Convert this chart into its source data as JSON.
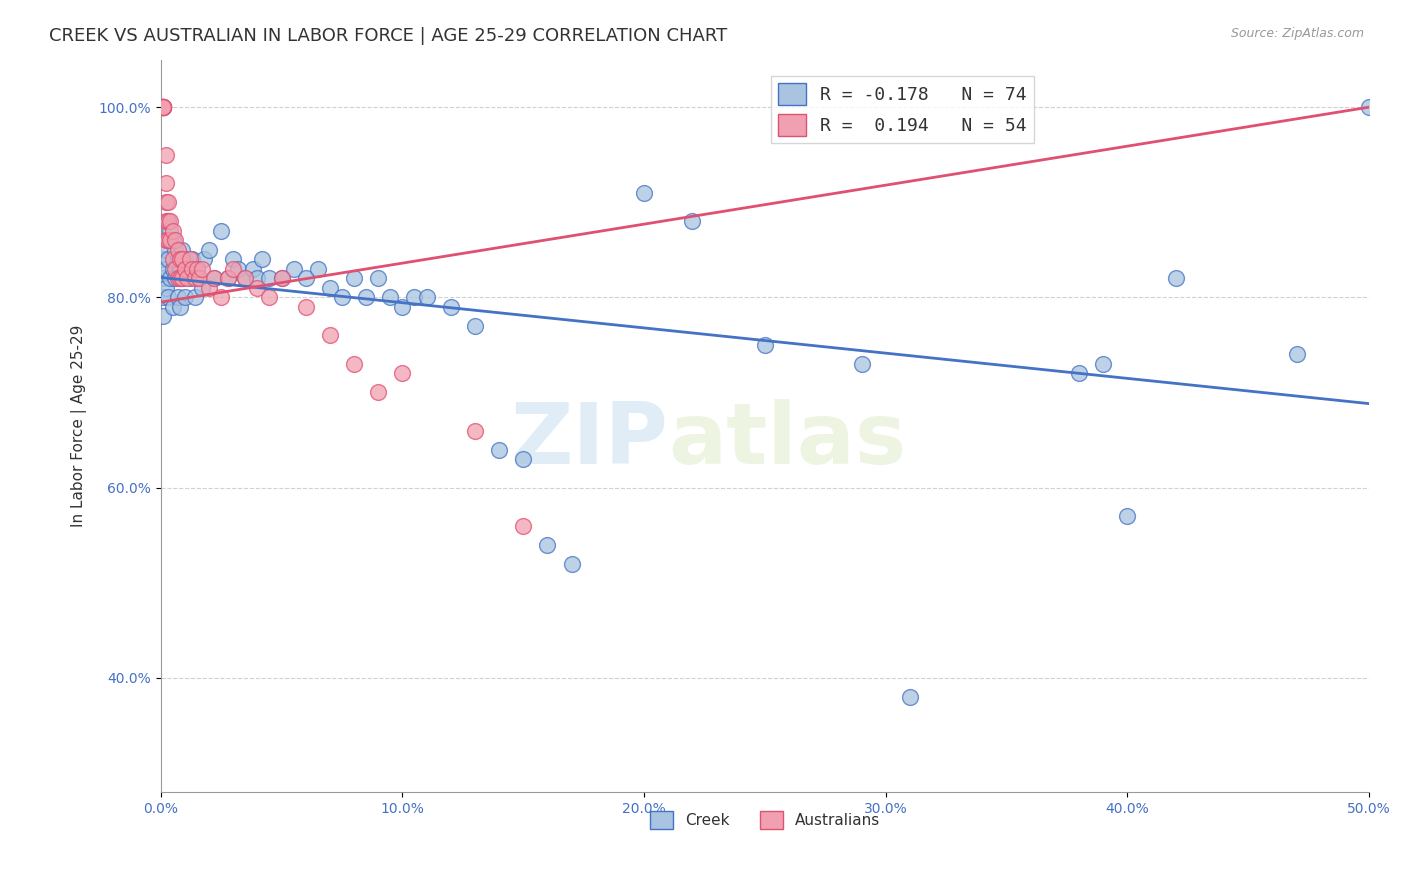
{
  "title": "CREEK VS AUSTRALIAN IN LABOR FORCE | AGE 25-29 CORRELATION CHART",
  "source": "Source: ZipAtlas.com",
  "ylabel": "In Labor Force | Age 25-29",
  "xlim": [
    0.0,
    0.5
  ],
  "ylim": [
    0.28,
    1.05
  ],
  "xticks": [
    0.0,
    0.1,
    0.2,
    0.3,
    0.4,
    0.5
  ],
  "xtick_labels": [
    "0.0%",
    "10.0%",
    "20.0%",
    "30.0%",
    "40.0%",
    "50.0%"
  ],
  "yticks": [
    0.4,
    0.6,
    0.8,
    1.0
  ],
  "ytick_labels": [
    "40.0%",
    "60.0%",
    "80.0%",
    "100.0%"
  ],
  "creek_R": -0.178,
  "creek_N": 74,
  "aus_R": 0.194,
  "aus_N": 54,
  "creek_color": "#a8c4e0",
  "aus_color": "#f0a0b0",
  "creek_line_color": "#4472c4",
  "aus_line_color": "#e05070",
  "watermark_zip": "ZIP",
  "watermark_atlas": "atlas",
  "creek_x": [
    0.001,
    0.001,
    0.001,
    0.001,
    0.002,
    0.002,
    0.002,
    0.003,
    0.003,
    0.003,
    0.004,
    0.004,
    0.005,
    0.005,
    0.005,
    0.006,
    0.006,
    0.007,
    0.007,
    0.008,
    0.008,
    0.009,
    0.009,
    0.01,
    0.01,
    0.011,
    0.012,
    0.013,
    0.014,
    0.015,
    0.016,
    0.017,
    0.018,
    0.02,
    0.022,
    0.025,
    0.028,
    0.03,
    0.032,
    0.035,
    0.038,
    0.04,
    0.042,
    0.045,
    0.05,
    0.055,
    0.06,
    0.065,
    0.07,
    0.075,
    0.08,
    0.085,
    0.09,
    0.095,
    0.1,
    0.105,
    0.11,
    0.12,
    0.13,
    0.14,
    0.15,
    0.16,
    0.17,
    0.2,
    0.22,
    0.25,
    0.29,
    0.31,
    0.38,
    0.39,
    0.4,
    0.42,
    0.47,
    0.5
  ],
  "creek_y": [
    0.84,
    0.82,
    0.8,
    0.78,
    0.85,
    0.83,
    0.81,
    0.88,
    0.84,
    0.8,
    0.87,
    0.82,
    0.86,
    0.83,
    0.79,
    0.85,
    0.82,
    0.84,
    0.8,
    0.83,
    0.79,
    0.85,
    0.82,
    0.84,
    0.8,
    0.83,
    0.82,
    0.84,
    0.8,
    0.83,
    0.82,
    0.81,
    0.84,
    0.85,
    0.82,
    0.87,
    0.82,
    0.84,
    0.83,
    0.82,
    0.83,
    0.82,
    0.84,
    0.82,
    0.82,
    0.83,
    0.82,
    0.83,
    0.81,
    0.8,
    0.82,
    0.8,
    0.82,
    0.8,
    0.79,
    0.8,
    0.8,
    0.79,
    0.77,
    0.64,
    0.63,
    0.54,
    0.52,
    0.91,
    0.88,
    0.75,
    0.73,
    0.38,
    0.72,
    0.73,
    0.57,
    0.82,
    0.74,
    1.0
  ],
  "aus_x": [
    0.001,
    0.001,
    0.001,
    0.001,
    0.001,
    0.001,
    0.001,
    0.001,
    0.001,
    0.001,
    0.002,
    0.002,
    0.002,
    0.002,
    0.002,
    0.003,
    0.003,
    0.003,
    0.004,
    0.004,
    0.005,
    0.005,
    0.006,
    0.006,
    0.007,
    0.007,
    0.008,
    0.008,
    0.009,
    0.009,
    0.01,
    0.011,
    0.012,
    0.013,
    0.014,
    0.015,
    0.016,
    0.017,
    0.02,
    0.022,
    0.025,
    0.028,
    0.03,
    0.035,
    0.04,
    0.045,
    0.05,
    0.06,
    0.07,
    0.08,
    0.09,
    0.1,
    0.13,
    0.15
  ],
  "aus_y": [
    1.0,
    1.0,
    1.0,
    1.0,
    1.0,
    1.0,
    1.0,
    1.0,
    1.0,
    1.0,
    0.95,
    0.92,
    0.9,
    0.88,
    0.86,
    0.9,
    0.88,
    0.86,
    0.88,
    0.86,
    0.87,
    0.84,
    0.86,
    0.83,
    0.85,
    0.82,
    0.84,
    0.82,
    0.84,
    0.82,
    0.83,
    0.82,
    0.84,
    0.83,
    0.82,
    0.83,
    0.82,
    0.83,
    0.81,
    0.82,
    0.8,
    0.82,
    0.83,
    0.82,
    0.81,
    0.8,
    0.82,
    0.79,
    0.76,
    0.73,
    0.7,
    0.72,
    0.66,
    0.56
  ],
  "background_color": "#ffffff",
  "grid_color": "#cccccc",
  "axis_color": "#4472c4",
  "title_fontsize": 13,
  "label_fontsize": 11,
  "tick_fontsize": 10,
  "legend_fontsize": 13
}
